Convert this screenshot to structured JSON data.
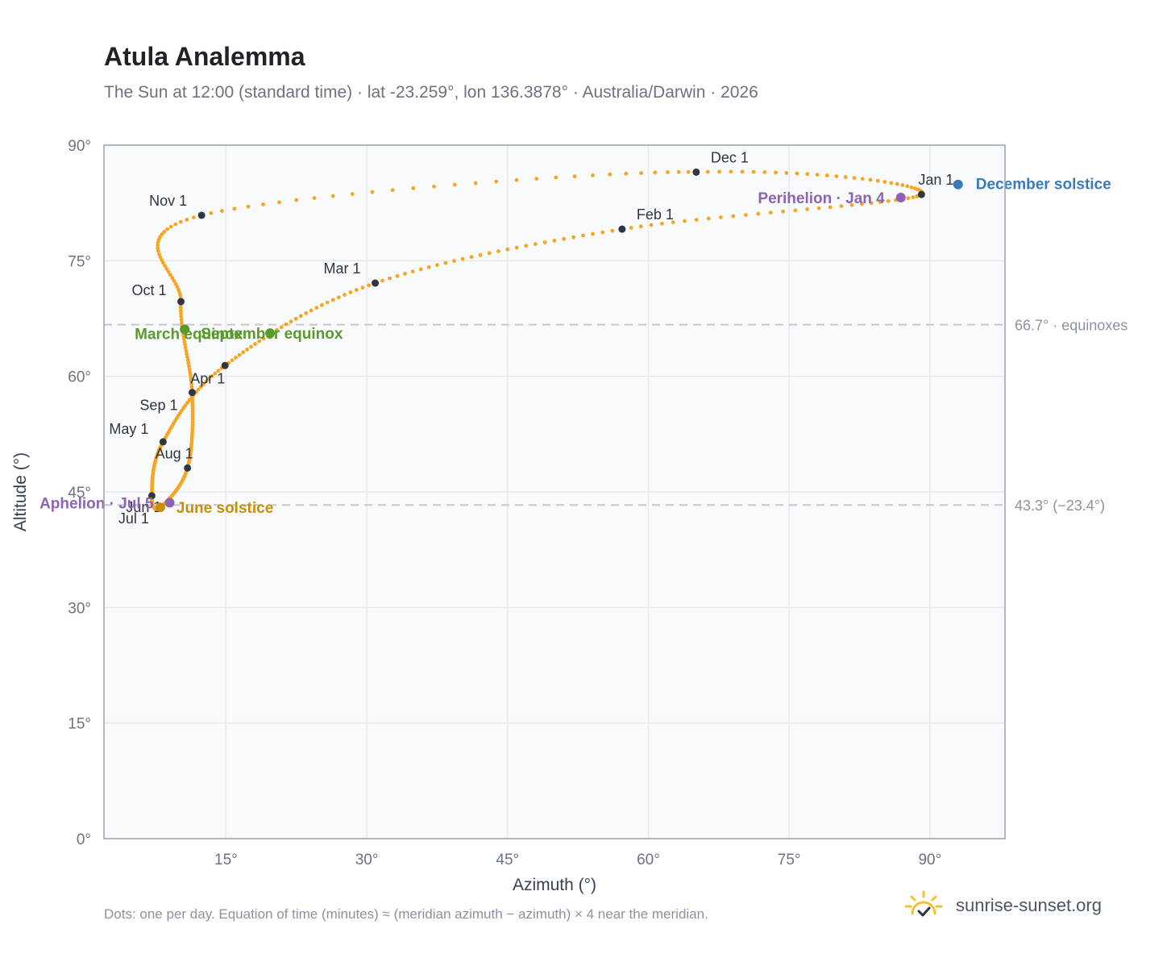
{
  "header": {
    "title": "Atula Analemma",
    "subtitle": "The Sun at 12:00 (standard time) · lat -23.259°, lon 136.3878° · Australia/Darwin · 2026"
  },
  "footer": {
    "note": "Dots: one per day. Equation of time (minutes) ≈ (meridian azimuth − azimuth) × 4 near the meridian.",
    "brand": "sunrise-sunset.org"
  },
  "colors": {
    "path": "#f5a623",
    "month_marker": "#2f3640",
    "equinox": "#5a9a2a",
    "june_solstice": "#c8900a",
    "december_solstice": "#3a7ab8",
    "apsis": "#8e62b5",
    "reference_line": "#c4c9d1",
    "plot_bg": "#f8fafc",
    "grid": "#e6e9ee",
    "axis_text": "#6b7280",
    "logo": "#f2c230"
  },
  "chart_data": {
    "type": "scatter",
    "xlabel": "Azimuth (°)",
    "ylabel": "Altitude (°)",
    "xlim": [
      2,
      98
    ],
    "ylim": [
      0,
      90
    ],
    "x_ticks": [
      15,
      30,
      45,
      60,
      75,
      90
    ],
    "x_tick_labels": [
      "15°",
      "30°",
      "45°",
      "60°",
      "75°",
      "90°"
    ],
    "y_ticks": [
      0,
      15,
      30,
      45,
      60,
      75,
      90
    ],
    "y_tick_labels": [
      "0°",
      "15°",
      "30°",
      "45°",
      "60°",
      "75°",
      "90°"
    ],
    "grid": true,
    "reference_lines": [
      {
        "y": 66.7,
        "label": "66.7° · equinoxes"
      },
      {
        "y": 43.3,
        "label": "43.3° (−23.4°)"
      }
    ],
    "month_markers": [
      {
        "label": "Jan 1",
        "x": 89.1,
        "y": 83.6
      },
      {
        "label": "Feb 1",
        "x": 57.2,
        "y": 79.1
      },
      {
        "label": "Mar 1",
        "x": 30.9,
        "y": 72.1
      },
      {
        "label": "Apr 1",
        "x": 14.9,
        "y": 61.4
      },
      {
        "label": "May 1",
        "x": 8.3,
        "y": 51.5
      },
      {
        "label": "Jun 1",
        "x": 7.1,
        "y": 44.5
      },
      {
        "label": "Jul 1",
        "x": 8.0,
        "y": 43.0
      },
      {
        "label": "Aug 1",
        "x": 10.9,
        "y": 48.1
      },
      {
        "label": "Sep 1",
        "x": 11.4,
        "y": 57.9
      },
      {
        "label": "Oct 1",
        "x": 10.2,
        "y": 69.7
      },
      {
        "label": "Nov 1",
        "x": 12.4,
        "y": 80.9
      },
      {
        "label": "Dec 1",
        "x": 65.1,
        "y": 86.5
      }
    ],
    "events": [
      {
        "label": "December solstice",
        "x": 93.0,
        "y": 84.9,
        "kind": "december_solstice"
      },
      {
        "label": "Perihelion · Jan 4",
        "x": 86.9,
        "y": 83.2,
        "kind": "apsis"
      },
      {
        "label": "March equinox",
        "x": 10.6,
        "y": 66.1,
        "kind": "equinox"
      },
      {
        "label": "September equinox",
        "x": 19.7,
        "y": 65.6,
        "kind": "equinox"
      },
      {
        "label": "June solstice",
        "x": 8.0,
        "y": 43.0,
        "kind": "june_solstice"
      },
      {
        "label": "Aphelion · Jul 5",
        "x": 9.0,
        "y": 43.6,
        "kind": "apsis"
      }
    ],
    "path_keypoints_note": "daily path sampled through these anchors",
    "path_anchors": [
      [
        89.1,
        83.6
      ],
      [
        57.2,
        79.1
      ],
      [
        30.9,
        72.1
      ],
      [
        14.9,
        61.4
      ],
      [
        8.3,
        51.5
      ],
      [
        7.1,
        44.5
      ],
      [
        8.0,
        43.0
      ],
      [
        10.9,
        48.1
      ],
      [
        11.4,
        57.9
      ],
      [
        10.2,
        69.7
      ],
      [
        12.4,
        80.9
      ],
      [
        65.1,
        86.5
      ],
      [
        89.1,
        83.6
      ]
    ]
  }
}
